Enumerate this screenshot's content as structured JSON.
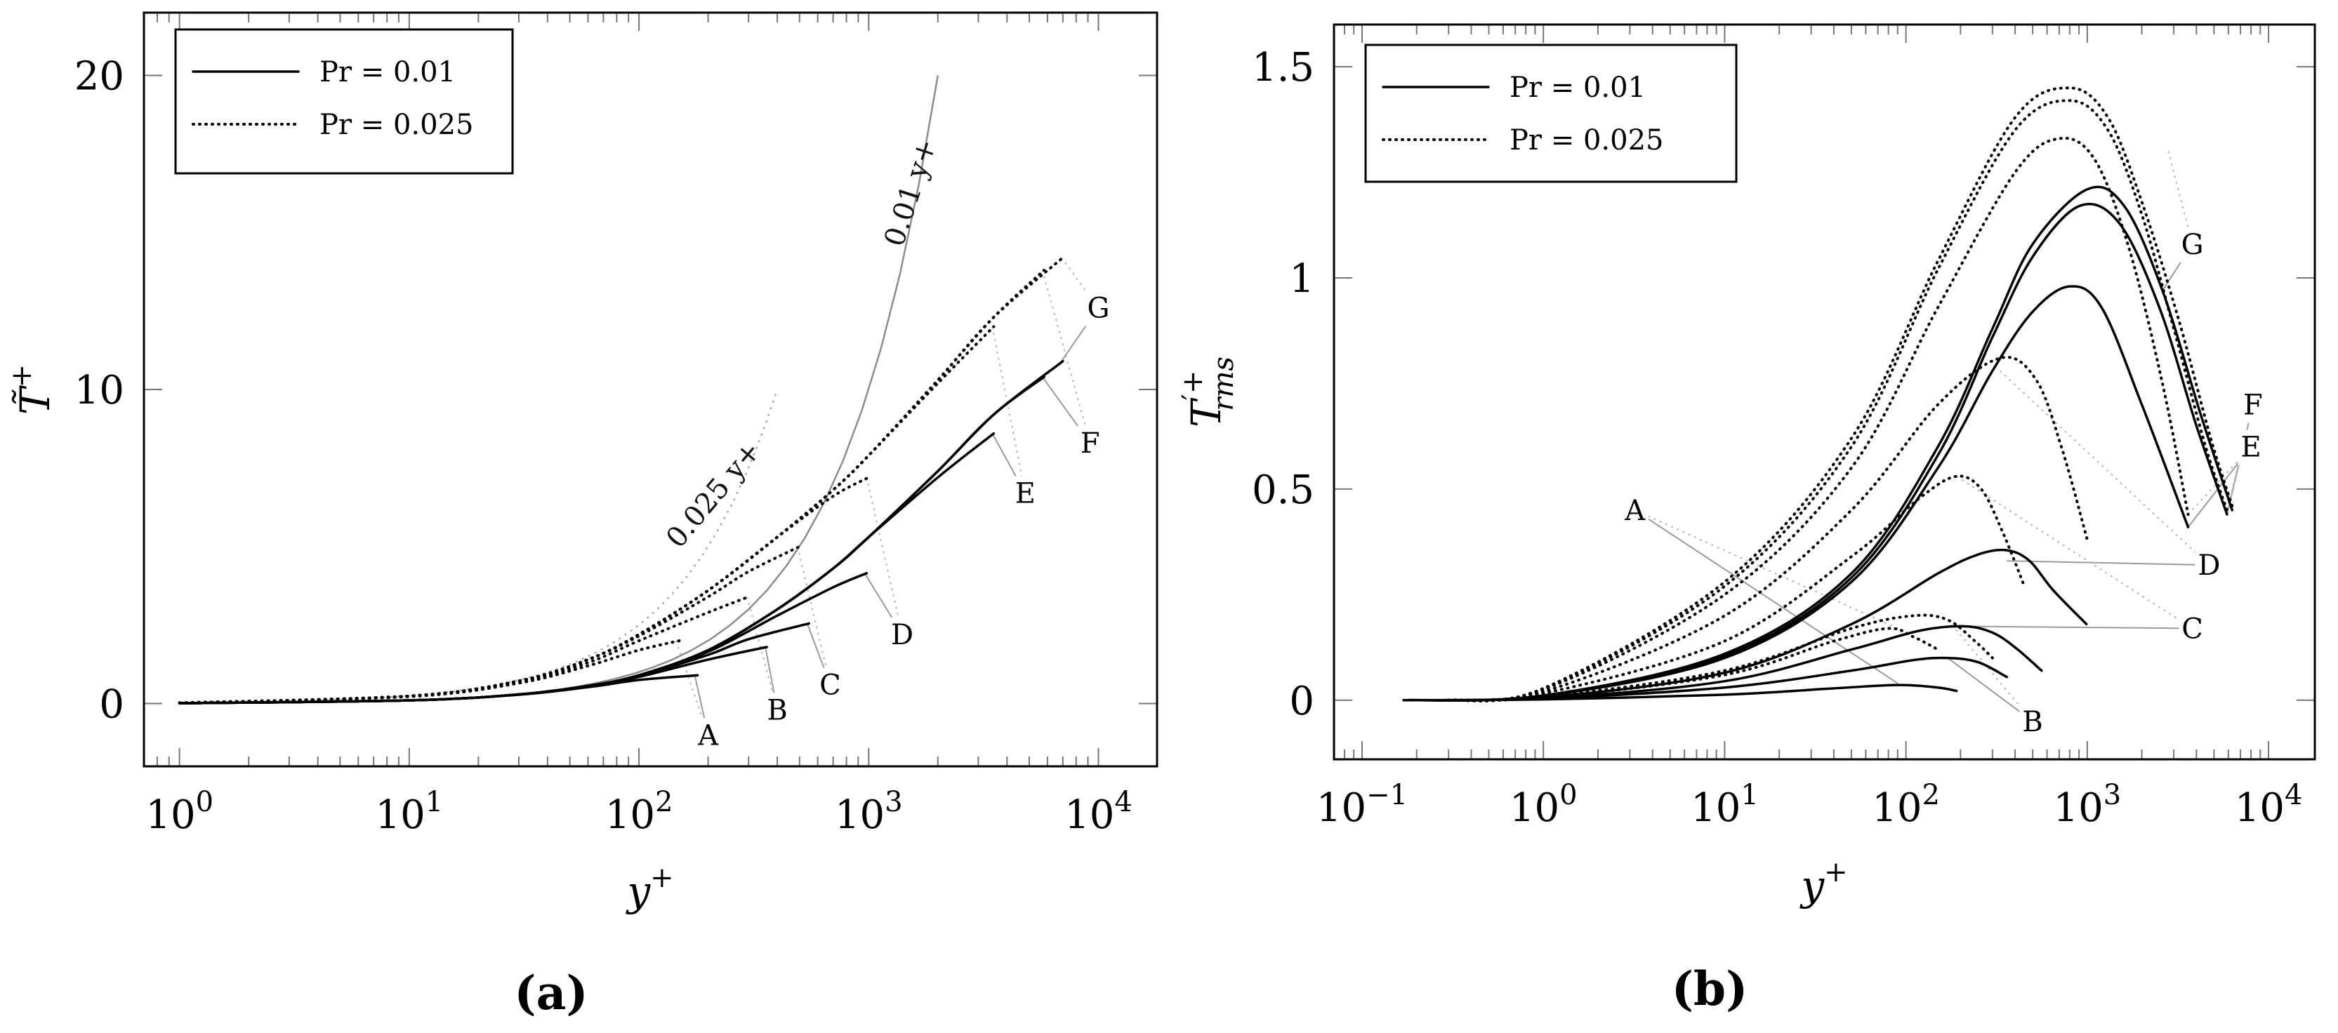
{
  "chart_data": [
    {
      "panel": "(a)",
      "type": "line",
      "xscale": "log",
      "xlim": [
        0.7,
        18000
      ],
      "ylim": [
        -2,
        22
      ],
      "xlabel": "y",
      "xlabel_sup": "+",
      "ylabel": "T̃",
      "ylabel_sup": "+",
      "x_ticks": [
        {
          "value": 1,
          "base": "10",
          "exp": "0"
        },
        {
          "value": 10,
          "base": "10",
          "exp": "1"
        },
        {
          "value": 100,
          "base": "10",
          "exp": "2"
        },
        {
          "value": 1000,
          "base": "10",
          "exp": "3"
        },
        {
          "value": 10000,
          "base": "10",
          "exp": "4"
        }
      ],
      "y_ticks": [
        {
          "value": 0,
          "label": "0"
        },
        {
          "value": 10,
          "label": "10"
        },
        {
          "value": 20,
          "label": "20"
        }
      ],
      "legend": {
        "position": "top-left",
        "entries": [
          {
            "label": "Pr = 0.01",
            "style": "solid"
          },
          {
            "label": "Pr = 0.025",
            "style": "dotted"
          }
        ]
      },
      "reference_lines": [
        {
          "name": "0.01-y-plus",
          "label": "0.01 y+",
          "x": [
            1,
            2000
          ],
          "y": [
            0.01,
            20
          ]
        },
        {
          "name": "0.025-y-plus",
          "label": "0.025 y+",
          "x": [
            1,
            400
          ],
          "y": [
            0.025,
            10
          ]
        }
      ],
      "series": [
        {
          "name": "A",
          "style": "solid",
          "x": [
            1,
            10,
            30,
            60,
            100,
            180
          ],
          "y": [
            0.01,
            0.1,
            0.28,
            0.52,
            0.75,
            0.9
          ]
        },
        {
          "name": "B",
          "style": "solid",
          "x": [
            1,
            10,
            30,
            60,
            100,
            200,
            360
          ],
          "y": [
            0.01,
            0.1,
            0.29,
            0.55,
            0.85,
            1.4,
            1.8
          ]
        },
        {
          "name": "C",
          "style": "solid",
          "x": [
            1,
            10,
            30,
            60,
            100,
            200,
            300,
            550
          ],
          "y": [
            0.01,
            0.1,
            0.29,
            0.56,
            0.88,
            1.55,
            2.05,
            2.55
          ]
        },
        {
          "name": "D",
          "style": "solid",
          "x": [
            1,
            10,
            30,
            60,
            100,
            200,
            400,
            700,
            980
          ],
          "y": [
            0.01,
            0.1,
            0.29,
            0.56,
            0.9,
            1.65,
            2.8,
            3.7,
            4.15
          ]
        },
        {
          "name": "E",
          "style": "solid",
          "x": [
            1,
            10,
            30,
            60,
            100,
            200,
            400,
            700,
            1000,
            2000,
            3500
          ],
          "y": [
            0.01,
            0.1,
            0.29,
            0.56,
            0.9,
            1.7,
            3.0,
            4.3,
            5.3,
            7.2,
            8.6
          ]
        },
        {
          "name": "F",
          "style": "solid",
          "x": [
            1,
            10,
            30,
            60,
            100,
            200,
            400,
            700,
            1000,
            2000,
            3500,
            5800
          ],
          "y": [
            0.01,
            0.1,
            0.29,
            0.56,
            0.9,
            1.7,
            3.0,
            4.3,
            5.3,
            7.4,
            9.2,
            10.4
          ]
        },
        {
          "name": "G",
          "style": "solid",
          "x": [
            1,
            10,
            30,
            60,
            100,
            200,
            400,
            700,
            1000,
            2000,
            3500,
            7000
          ],
          "y": [
            0.01,
            0.1,
            0.29,
            0.56,
            0.9,
            1.7,
            3.0,
            4.3,
            5.3,
            7.4,
            9.2,
            10.9
          ]
        },
        {
          "name": "A",
          "style": "dotted",
          "x": [
            1,
            10,
            30,
            60,
            100,
            150
          ],
          "y": [
            0.02,
            0.22,
            0.65,
            1.2,
            1.7,
            2.0
          ]
        },
        {
          "name": "B",
          "style": "dotted",
          "x": [
            1,
            10,
            30,
            60,
            100,
            200,
            300
          ],
          "y": [
            0.02,
            0.24,
            0.7,
            1.3,
            2.0,
            2.9,
            3.4
          ]
        },
        {
          "name": "C",
          "style": "dotted",
          "x": [
            1,
            10,
            30,
            60,
            100,
            200,
            300,
            500
          ],
          "y": [
            0.02,
            0.24,
            0.72,
            1.4,
            2.15,
            3.4,
            4.2,
            5.0
          ]
        },
        {
          "name": "D",
          "style": "dotted",
          "x": [
            1,
            10,
            30,
            60,
            100,
            200,
            400,
            700,
            1000
          ],
          "y": [
            0.02,
            0.24,
            0.72,
            1.4,
            2.2,
            3.6,
            5.3,
            6.6,
            7.2
          ]
        },
        {
          "name": "E",
          "style": "dotted",
          "x": [
            1,
            10,
            30,
            60,
            100,
            200,
            400,
            700,
            1000,
            2000,
            3500
          ],
          "y": [
            0.02,
            0.24,
            0.72,
            1.4,
            2.2,
            3.6,
            5.3,
            6.8,
            7.9,
            10.2,
            12.0
          ]
        },
        {
          "name": "F",
          "style": "dotted",
          "x": [
            1,
            10,
            30,
            60,
            100,
            200,
            400,
            700,
            1000,
            2000,
            3500,
            5800
          ],
          "y": [
            0.02,
            0.24,
            0.72,
            1.4,
            2.2,
            3.6,
            5.3,
            6.8,
            7.9,
            10.3,
            12.3,
            13.8
          ]
        },
        {
          "name": "G",
          "style": "dotted",
          "x": [
            1,
            10,
            30,
            60,
            100,
            200,
            400,
            700,
            1000,
            2000,
            3500,
            7000
          ],
          "y": [
            0.02,
            0.24,
            0.72,
            1.4,
            2.2,
            3.6,
            5.3,
            6.8,
            7.9,
            10.3,
            12.3,
            14.2
          ]
        }
      ],
      "case_labels": [
        {
          "text": "A",
          "x": 200,
          "y": -1.0,
          "solid": [
            175,
            0.9
          ],
          "dotted": [
            145,
            2.0
          ]
        },
        {
          "text": "B",
          "x": 400,
          "y": -0.2,
          "solid": [
            355,
            1.8
          ],
          "dotted": [
            295,
            3.4
          ]
        },
        {
          "text": "C",
          "x": 680,
          "y": 0.6,
          "solid": [
            540,
            2.55
          ],
          "dotted": [
            490,
            5.0
          ]
        },
        {
          "text": "D",
          "x": 1400,
          "y": 2.2,
          "solid": [
            960,
            4.15
          ],
          "dotted": [
            980,
            7.2
          ]
        },
        {
          "text": "E",
          "x": 4800,
          "y": 6.7,
          "solid": [
            3450,
            8.6
          ],
          "dotted": [
            3450,
            12.0
          ]
        },
        {
          "text": "F",
          "x": 9200,
          "y": 8.3,
          "solid": [
            5700,
            10.4
          ],
          "dotted": [
            5700,
            13.8
          ]
        },
        {
          "text": "G",
          "x": 10000,
          "y": 12.6,
          "solid": [
            6900,
            10.9
          ],
          "dotted": [
            6900,
            14.2
          ]
        }
      ]
    },
    {
      "panel": "(b)",
      "type": "line",
      "xscale": "log",
      "xlim": [
        0.07,
        18000
      ],
      "ylim": [
        -0.14,
        1.6
      ],
      "xlabel": "y",
      "xlabel_sup": "+",
      "ylabel": "T",
      "ylabel_sup": "′+",
      "ylabel_sub": "rms",
      "x_ticks": [
        {
          "value": 0.1,
          "base": "10",
          "exp": "−1"
        },
        {
          "value": 1,
          "base": "10",
          "exp": "0"
        },
        {
          "value": 10,
          "base": "10",
          "exp": "1"
        },
        {
          "value": 100,
          "base": "10",
          "exp": "2"
        },
        {
          "value": 1000,
          "base": "10",
          "exp": "3"
        },
        {
          "value": 10000,
          "base": "10",
          "exp": "4"
        }
      ],
      "y_ticks": [
        {
          "value": 0,
          "label": "0"
        },
        {
          "value": 0.5,
          "label": "0.5"
        },
        {
          "value": 1,
          "label": "1"
        },
        {
          "value": 1.5,
          "label": "1.5"
        }
      ],
      "legend": {
        "position": "top-left",
        "entries": [
          {
            "label": "Pr = 0.01",
            "style": "solid"
          },
          {
            "label": "Pr = 0.025",
            "style": "dotted"
          }
        ]
      },
      "series": [
        {
          "name": "A",
          "style": "solid",
          "x": [
            0.17,
            1,
            10,
            40,
            90,
            150,
            190
          ],
          "y": [
            0,
            0.002,
            0.013,
            0.028,
            0.036,
            0.03,
            0.022
          ]
        },
        {
          "name": "B",
          "style": "solid",
          "x": [
            0.17,
            1,
            10,
            50,
            110,
            170,
            250,
            360
          ],
          "y": [
            0,
            0.004,
            0.03,
            0.07,
            0.095,
            0.1,
            0.09,
            0.055
          ]
        },
        {
          "name": "C",
          "style": "solid",
          "x": [
            0.17,
            1,
            10,
            50,
            120,
            210,
            300,
            400,
            560
          ],
          "y": [
            0,
            0.005,
            0.045,
            0.12,
            0.165,
            0.175,
            0.16,
            0.125,
            0.07
          ]
        },
        {
          "name": "D",
          "style": "solid",
          "x": [
            0.17,
            1,
            10,
            50,
            150,
            250,
            360,
            480,
            650,
            990
          ],
          "y": [
            0,
            0.007,
            0.065,
            0.18,
            0.3,
            0.345,
            0.355,
            0.33,
            0.26,
            0.18
          ]
        },
        {
          "name": "E",
          "style": "solid",
          "x": [
            0.17,
            1,
            10,
            50,
            150,
            300,
            500,
            800,
            1200,
            2000,
            3600
          ],
          "y": [
            0,
            0.01,
            0.1,
            0.28,
            0.55,
            0.78,
            0.92,
            0.98,
            0.93,
            0.7,
            0.41
          ]
        },
        {
          "name": "F",
          "style": "solid",
          "x": [
            0.17,
            1,
            10,
            50,
            150,
            300,
            500,
            900,
            1500,
            2500,
            4000,
            5900
          ],
          "y": [
            0,
            0.011,
            0.105,
            0.29,
            0.58,
            0.86,
            1.05,
            1.17,
            1.13,
            0.93,
            0.65,
            0.44
          ]
        },
        {
          "name": "G",
          "style": "solid",
          "x": [
            0.17,
            1,
            10,
            50,
            150,
            300,
            500,
            1000,
            1600,
            2600,
            4200,
            6300
          ],
          "y": [
            0,
            0.011,
            0.11,
            0.3,
            0.6,
            0.88,
            1.08,
            1.21,
            1.17,
            0.97,
            0.68,
            0.45
          ]
        },
        {
          "name": "A",
          "style": "dotted",
          "x": [
            0.3,
            1,
            10,
            40,
            80,
            110,
            150
          ],
          "y": [
            0,
            0.006,
            0.06,
            0.14,
            0.17,
            0.15,
            0.12
          ]
        },
        {
          "name": "B",
          "style": "dotted",
          "x": [
            0.3,
            1,
            10,
            50,
            110,
            170,
            240,
            300
          ],
          "y": [
            0,
            0.008,
            0.07,
            0.17,
            0.2,
            0.19,
            0.14,
            0.1
          ]
        },
        {
          "name": "C",
          "style": "dotted",
          "x": [
            0.3,
            1,
            10,
            50,
            120,
            190,
            260,
            340,
            450
          ],
          "y": [
            0,
            0.016,
            0.14,
            0.34,
            0.48,
            0.53,
            0.5,
            0.4,
            0.27
          ]
        },
        {
          "name": "D",
          "style": "dotted",
          "x": [
            0.3,
            1,
            10,
            50,
            150,
            330,
            520,
            720,
            1000
          ],
          "y": [
            0,
            0.02,
            0.2,
            0.45,
            0.7,
            0.81,
            0.76,
            0.6,
            0.38
          ]
        },
        {
          "name": "E",
          "style": "dotted",
          "x": [
            0.3,
            1,
            10,
            50,
            150,
            400,
            700,
            1100,
            1700,
            2600,
            3600
          ],
          "y": [
            0,
            0.025,
            0.25,
            0.55,
            0.93,
            1.25,
            1.33,
            1.28,
            1.07,
            0.75,
            0.44
          ]
        },
        {
          "name": "F",
          "style": "dotted",
          "x": [
            0.3,
            1,
            10,
            50,
            150,
            400,
            800,
            1300,
            2000,
            3000,
            4500,
            5900
          ],
          "y": [
            0,
            0.027,
            0.27,
            0.6,
            1.02,
            1.35,
            1.42,
            1.35,
            1.15,
            0.88,
            0.6,
            0.45
          ]
        },
        {
          "name": "G",
          "style": "dotted",
          "x": [
            0.3,
            1,
            10,
            50,
            150,
            400,
            800,
            1300,
            2000,
            3200,
            4800,
            6300
          ],
          "y": [
            0,
            0.028,
            0.28,
            0.62,
            1.04,
            1.38,
            1.45,
            1.38,
            1.18,
            0.9,
            0.62,
            0.46
          ]
        }
      ],
      "case_labels": [
        {
          "text": "A",
          "x": 3.2,
          "y": 0.45,
          "solid": [
            90,
            0.04
          ],
          "dotted": [
            90,
            0.17
          ]
        },
        {
          "text": "B",
          "x": 500,
          "y": -0.05,
          "solid": [
            170,
            0.1
          ],
          "dotted": [
            170,
            0.19
          ]
        },
        {
          "text": "C",
          "x": 3800,
          "y": 0.17,
          "solid": [
            210,
            0.175
          ],
          "dotted": [
            190,
            0.53
          ]
        },
        {
          "text": "D",
          "x": 4700,
          "y": 0.32,
          "solid": [
            360,
            0.33
          ],
          "dotted": [
            330,
            0.78
          ]
        },
        {
          "text": "E",
          "x": 8000,
          "y": 0.6,
          "solid": [
            3600,
            0.41
          ],
          "dotted": [
            3600,
            0.44
          ]
        },
        {
          "text": "F",
          "x": 8200,
          "y": 0.7,
          "solid": [
            5900,
            0.44
          ],
          "dotted": [
            5900,
            0.45
          ]
        },
        {
          "text": "G",
          "x": 3800,
          "y": 1.08,
          "solid": [
            2600,
            0.97
          ],
          "dotted": [
            2800,
            1.3
          ]
        }
      ]
    }
  ]
}
